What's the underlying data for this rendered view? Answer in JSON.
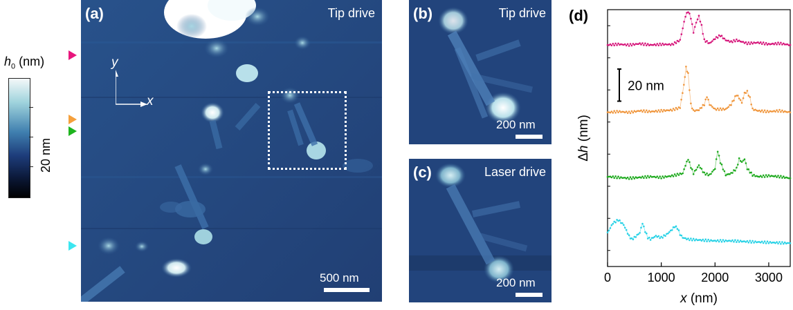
{
  "colorbar": {
    "label_symbol": "h",
    "label_subscript": "0",
    "label_unit": " (nm)",
    "scale_text": "20 nm"
  },
  "markers": {
    "colors": [
      "#e8167d",
      "#f5a03c",
      "#1eb41e",
      "#3ce6f0"
    ]
  },
  "panel_a": {
    "label": "(a)",
    "title": "Tip drive",
    "scale_bar": "500 nm",
    "axis_y": "y",
    "axis_x": "x"
  },
  "panel_b": {
    "label": "(b)",
    "title": "Tip drive",
    "scale_bar": "200 nm"
  },
  "panel_c": {
    "label": "(c)",
    "title": "Laser drive",
    "scale_bar": "200 nm"
  },
  "chart_data": {
    "type": "line",
    "label": "(d)",
    "xlabel_symbol": "x",
    "xlabel_unit": " (nm)",
    "ylabel_prefix": "Δ",
    "ylabel_symbol": "h",
    "ylabel_unit": " (nm)",
    "scale_text": "20 nm",
    "scale_value": 20,
    "xlim": [
      0,
      3400
    ],
    "ylim": [
      -10,
      150
    ],
    "x_ticks": [
      0,
      1000,
      2000,
      3000
    ],
    "x_tick_labels": [
      "0",
      "1000",
      "2000",
      "3000"
    ],
    "y_minor_ticks": [
      0,
      20,
      40,
      60,
      80,
      100,
      120,
      140
    ],
    "grid": false,
    "series": [
      {
        "color": "#d6157a",
        "offset": 128,
        "x": [
          0,
          200,
          400,
          600,
          800,
          1000,
          1200,
          1350,
          1450,
          1500,
          1550,
          1600,
          1650,
          1700,
          1750,
          1800,
          1900,
          2000,
          2100,
          2200,
          2300,
          2400,
          2600,
          2800,
          3000,
          3200,
          3400
        ],
        "y": [
          0,
          0.5,
          0,
          0.8,
          0,
          0.4,
          0.3,
          3,
          18,
          21,
          17,
          8,
          14,
          18,
          12,
          3,
          1,
          4,
          6,
          3,
          2,
          3,
          1,
          1.5,
          0.5,
          1,
          0
        ]
      },
      {
        "color": "#f0963c",
        "offset": 86,
        "x": [
          0,
          200,
          400,
          600,
          800,
          1000,
          1200,
          1350,
          1420,
          1460,
          1500,
          1550,
          1600,
          1700,
          1800,
          1850,
          1900,
          2000,
          2200,
          2300,
          2400,
          2450,
          2500,
          2550,
          2600,
          2650,
          2700,
          2800,
          3000,
          3200,
          3400
        ],
        "y": [
          0,
          0.5,
          0,
          1,
          0.5,
          1,
          1.5,
          3,
          17,
          28,
          24,
          5,
          1,
          1.5,
          5,
          10,
          5,
          2,
          2,
          5,
          11,
          9,
          6,
          12,
          13,
          9,
          2,
          1,
          0.5,
          1,
          0
        ]
      },
      {
        "color": "#1eaa1e",
        "offset": 45,
        "x": [
          0,
          200,
          400,
          600,
          800,
          1000,
          1200,
          1400,
          1450,
          1500,
          1550,
          1600,
          1700,
          1800,
          1900,
          2000,
          2050,
          2100,
          2200,
          2300,
          2400,
          2450,
          2500,
          2550,
          2600,
          2700,
          2800,
          3000,
          3200,
          3400
        ],
        "y": [
          1,
          0.5,
          0,
          0.5,
          1,
          0.5,
          1.5,
          3,
          8,
          12,
          7,
          3,
          8,
          3,
          2,
          6,
          17,
          10,
          2,
          3,
          6,
          12,
          10,
          12,
          6,
          2,
          1,
          1.5,
          1,
          0
        ]
      },
      {
        "color": "#28d2e6",
        "offset": 5,
        "x": [
          0,
          100,
          200,
          300,
          400,
          450,
          500,
          600,
          650,
          700,
          750,
          800,
          900,
          1000,
          1100,
          1200,
          1250,
          1300,
          1350,
          1400,
          1500,
          1700,
          2000,
          2300,
          2600,
          3000,
          3400
        ],
        "y": [
          6,
          12,
          14,
          11,
          4,
          2,
          3,
          6,
          12,
          7,
          3,
          2,
          4,
          3,
          5,
          8,
          10,
          9,
          5,
          3,
          2,
          1.5,
          1,
          1,
          0.5,
          0,
          -0.5
        ]
      }
    ]
  }
}
